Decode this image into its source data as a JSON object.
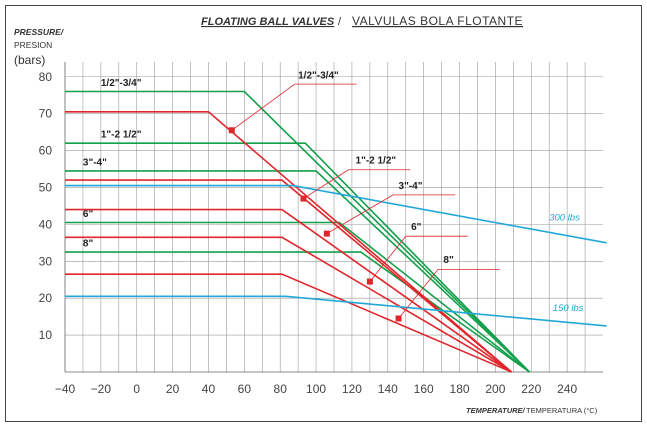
{
  "chart_data": {
    "type": "line",
    "title": "FLOATING BALL VALVES",
    "title_separator": " / ",
    "subtitle": "VALVULAS BOLA FLOTANTE",
    "ylabel_line1": "PRESSURE/",
    "ylabel_line2": "PRESION",
    "ylabel_unit": "(bars)",
    "xlabel_main": "TEMPERATURE/",
    "xlabel_sub": " TEMPERATURA (°C)",
    "xlim": [
      -40,
      260
    ],
    "ylim": [
      0,
      84
    ],
    "x_ticks": [
      -40,
      -20,
      0,
      20,
      40,
      60,
      80,
      100,
      120,
      140,
      160,
      180,
      200,
      220,
      240
    ],
    "y_ticks": [
      10,
      20,
      30,
      40,
      50,
      60,
      70,
      80
    ],
    "grid": true,
    "colors": {
      "green": "#12a04a",
      "red": "#e0262b",
      "blue": "#22a8d8",
      "grid": "#9a9a9a"
    },
    "series": [
      {
        "name": "1/2\"-3/4\"",
        "color": "green",
        "points": [
          [
            -40,
            76
          ],
          [
            60,
            76
          ],
          [
            219,
            0
          ]
        ],
        "label_left": true,
        "label_x": -20,
        "label_y": 77.5
      },
      {
        "name": "1\"-2 1/2\"",
        "color": "green",
        "points": [
          [
            -40,
            62
          ],
          [
            94,
            62
          ],
          [
            219,
            0
          ]
        ],
        "label_left": true,
        "label_x": -20,
        "label_y": 63.5
      },
      {
        "name": "3\"-4\"",
        "color": "green",
        "points": [
          [
            -40,
            54.5
          ],
          [
            100,
            54.5
          ],
          [
            219,
            0
          ]
        ],
        "label_left": true,
        "label_x": -30,
        "label_y": 56
      },
      {
        "name": "6\"",
        "color": "green",
        "points": [
          [
            -40,
            40.5
          ],
          [
            113,
            40.5
          ],
          [
            219,
            0
          ]
        ],
        "label_left": true,
        "label_x": -30,
        "label_y": 42
      },
      {
        "name": "8\"",
        "color": "green",
        "points": [
          [
            -40,
            32.5
          ],
          [
            125,
            32.5
          ],
          [
            219,
            0
          ]
        ],
        "label_left": true,
        "label_x": -30,
        "label_y": 34
      },
      {
        "name": "",
        "color": "red",
        "points": [
          [
            -40,
            70.5
          ],
          [
            40,
            70.5
          ],
          [
            209,
            0
          ]
        ]
      },
      {
        "name": "",
        "color": "red",
        "points": [
          [
            -40,
            52
          ],
          [
            81,
            52
          ],
          [
            209,
            0
          ]
        ]
      },
      {
        "name": "",
        "color": "red",
        "points": [
          [
            -40,
            44
          ],
          [
            81,
            44
          ],
          [
            209,
            0
          ]
        ]
      },
      {
        "name": "",
        "color": "red",
        "points": [
          [
            -40,
            36.5
          ],
          [
            81,
            36.5
          ],
          [
            209,
            0
          ]
        ]
      },
      {
        "name": "",
        "color": "red",
        "points": [
          [
            -40,
            26.5
          ],
          [
            81,
            26.5
          ],
          [
            209,
            0
          ]
        ]
      },
      {
        "name": "",
        "color": "blue",
        "points": [
          [
            -40,
            50.5
          ],
          [
            87,
            50.5
          ],
          [
            262,
            35
          ]
        ]
      },
      {
        "name": "",
        "color": "blue",
        "points": [
          [
            -40,
            20.5
          ],
          [
            83,
            20.5
          ],
          [
            262,
            12.5
          ]
        ]
      }
    ],
    "callouts": [
      {
        "text": "1/2\"-3/4\"",
        "point": [
          53,
          65.5
        ],
        "elbow": [
          88,
          78
        ],
        "label_x": 90,
        "label_y": 79
      },
      {
        "text": "1\"-2 1/2\"",
        "point": [
          93,
          47
        ],
        "elbow": [
          118,
          54.8
        ],
        "label_x": 122,
        "label_y": 56
      },
      {
        "text": "3\"-4\"",
        "point": [
          106,
          37.5
        ],
        "elbow": [
          143,
          48
        ],
        "label_x": 146,
        "label_y": 49
      },
      {
        "text": "6\"",
        "point": [
          130,
          24.5
        ],
        "elbow": [
          150,
          36.8
        ],
        "label_x": 153,
        "label_y": 38
      },
      {
        "text": "8\"",
        "point": [
          146,
          14.5
        ],
        "elbow": [
          168,
          27.8
        ],
        "label_x": 171,
        "label_y": 29
      }
    ],
    "annotations": [
      {
        "text": "300 lbs",
        "color": "blue",
        "x": 230,
        "y": 41
      },
      {
        "text": "150 lbs",
        "color": "blue",
        "x": 232,
        "y": 16.5
      }
    ]
  }
}
